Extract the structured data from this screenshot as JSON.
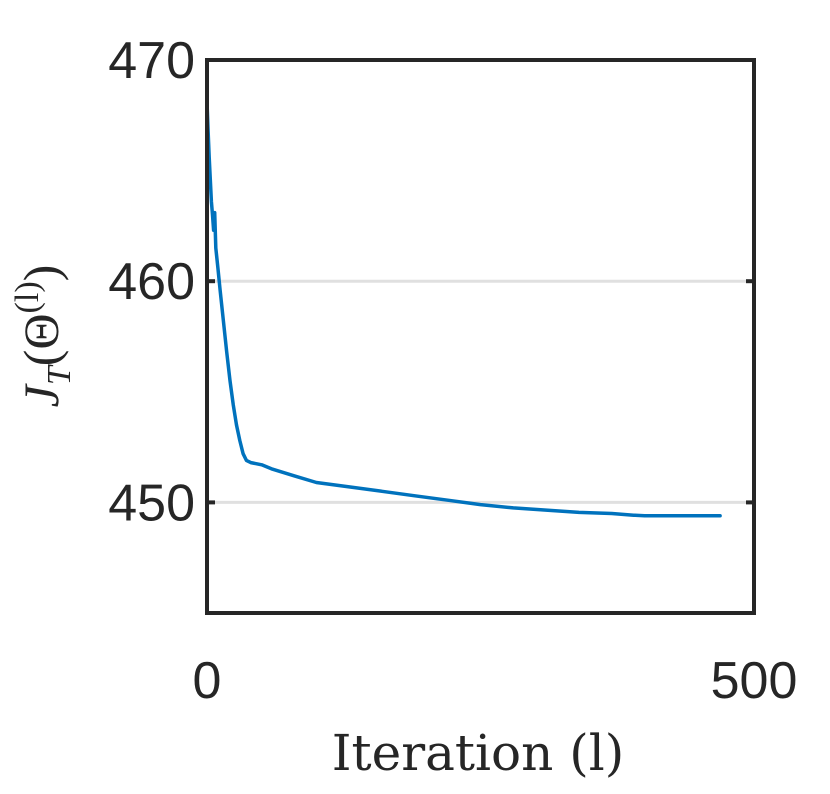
{
  "chart_data": {
    "type": "line",
    "title": "",
    "xlabel": "Iteration (l)",
    "ylabel": {
      "main": "J",
      "subscript": "T",
      "open": "(Θ",
      "superscript": "(l)",
      "close": ")"
    },
    "xlim": [
      0,
      500
    ],
    "ylim": [
      445,
      470
    ],
    "xticks": [
      "0",
      "500"
    ],
    "yticks": [
      "450",
      "460",
      "470"
    ],
    "grid": "horizontal",
    "series": [
      {
        "color": "#0072BD",
        "x": [
          0,
          1,
          2,
          3,
          4,
          5,
          6,
          7,
          8,
          10,
          12,
          15,
          18,
          21,
          24,
          27,
          30,
          33,
          36,
          40,
          50,
          60,
          80,
          100,
          130,
          160,
          190,
          220,
          250,
          280,
          310,
          340,
          370,
          390,
          400,
          420,
          440,
          460,
          469
        ],
        "y": [
          468.1,
          466.8,
          465.6,
          464.6,
          463.6,
          463.0,
          462.3,
          463.1,
          461.5,
          460.6,
          459.6,
          458.2,
          456.8,
          455.5,
          454.4,
          453.5,
          452.8,
          452.2,
          451.9,
          451.8,
          451.7,
          451.5,
          451.2,
          450.9,
          450.7,
          450.5,
          450.3,
          450.1,
          449.9,
          449.75,
          449.65,
          449.55,
          449.5,
          449.42,
          449.4,
          449.4,
          449.4,
          449.4,
          449.4
        ]
      }
    ]
  }
}
